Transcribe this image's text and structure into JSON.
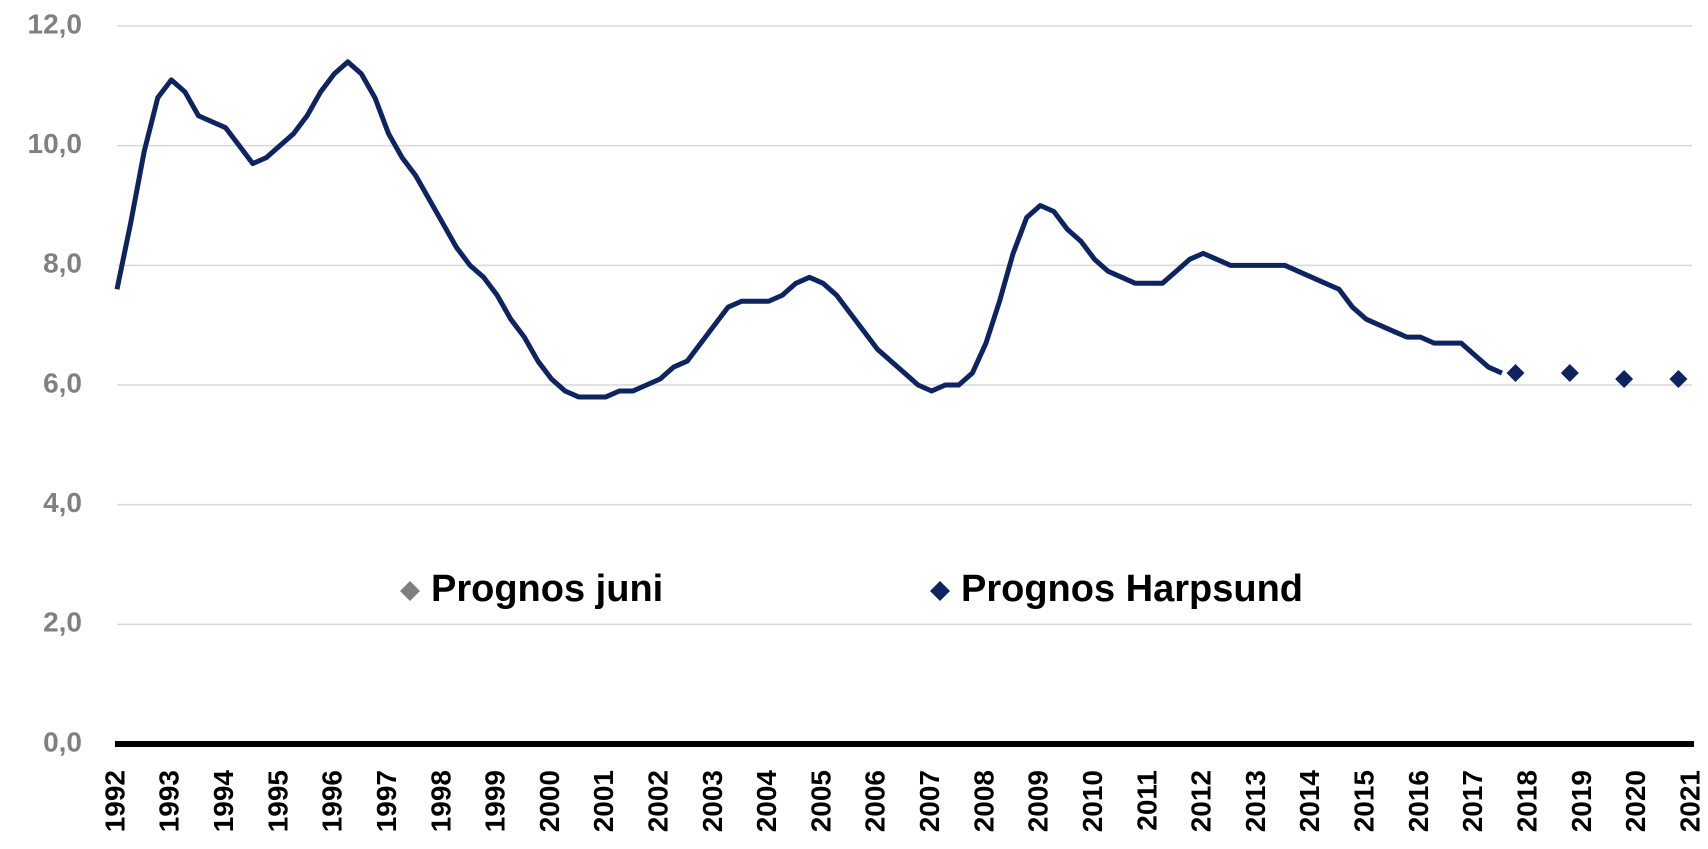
{
  "chart_data": {
    "type": "line",
    "xlim": [
      1992,
      2021
    ],
    "xticks": [
      1992,
      1993,
      1994,
      1995,
      1996,
      1997,
      1998,
      1999,
      2000,
      2001,
      2002,
      2003,
      2004,
      2005,
      2006,
      2007,
      2008,
      2009,
      2010,
      2011,
      2012,
      2013,
      2014,
      2015,
      2016,
      2017,
      2018,
      2019,
      2020,
      2021
    ],
    "ylim": [
      0,
      12
    ],
    "yticks": [
      {
        "value": 0,
        "label": "0,0"
      },
      {
        "value": 2,
        "label": "2,0"
      },
      {
        "value": 4,
        "label": "4,0"
      },
      {
        "value": 6,
        "label": "6,0"
      },
      {
        "value": 8,
        "label": "8,0"
      },
      {
        "value": 10,
        "label": "10,0"
      },
      {
        "value": 12,
        "label": "12,0"
      }
    ],
    "grid": true,
    "series": [
      {
        "color": "#0d2461",
        "mode": "line",
        "x": [
          1992,
          1992.25,
          1992.5,
          1992.75,
          1993,
          1993.25,
          1993.5,
          1993.75,
          1994,
          1994.25,
          1994.5,
          1994.75,
          1995,
          1995.25,
          1995.5,
          1995.75,
          1996,
          1996.25,
          1996.5,
          1996.75,
          1997,
          1997.25,
          1997.5,
          1997.75,
          1998,
          1998.25,
          1998.5,
          1998.75,
          1999,
          1999.25,
          1999.5,
          1999.75,
          2000,
          2000.25,
          2000.5,
          2000.75,
          2001,
          2001.25,
          2001.5,
          2001.75,
          2002,
          2002.25,
          2002.5,
          2002.75,
          2003,
          2003.25,
          2003.5,
          2003.75,
          2004,
          2004.25,
          2004.5,
          2004.75,
          2005,
          2005.25,
          2005.5,
          2005.75,
          2006,
          2006.25,
          2006.5,
          2006.75,
          2007,
          2007.25,
          2007.5,
          2007.75,
          2008,
          2008.25,
          2008.5,
          2008.75,
          2009,
          2009.25,
          2009.5,
          2009.75,
          2010,
          2010.25,
          2010.5,
          2010.75,
          2011,
          2011.25,
          2011.5,
          2011.75,
          2012,
          2012.25,
          2012.5,
          2012.75,
          2013,
          2013.25,
          2013.5,
          2013.75,
          2014,
          2014.25,
          2014.5,
          2014.75,
          2015,
          2015.25,
          2015.5,
          2015.75,
          2016,
          2016.25,
          2016.5,
          2016.75,
          2017,
          2017.25,
          2017.5
        ],
        "values": [
          7.6,
          8.7,
          9.9,
          10.8,
          11.1,
          10.9,
          10.5,
          10.4,
          10.3,
          10.0,
          9.7,
          9.8,
          10.0,
          10.2,
          10.5,
          10.9,
          11.2,
          11.4,
          11.2,
          10.8,
          10.2,
          9.8,
          9.5,
          9.1,
          8.7,
          8.3,
          8.0,
          7.8,
          7.5,
          7.1,
          6.8,
          6.4,
          6.1,
          5.9,
          5.8,
          5.8,
          5.8,
          5.9,
          5.9,
          6.0,
          6.1,
          6.3,
          6.4,
          6.7,
          7.0,
          7.3,
          7.4,
          7.4,
          7.4,
          7.5,
          7.7,
          7.8,
          7.7,
          7.5,
          7.2,
          6.9,
          6.6,
          6.4,
          6.2,
          6.0,
          5.9,
          6.0,
          6.0,
          6.2,
          6.7,
          7.4,
          8.2,
          8.8,
          9.0,
          8.9,
          8.6,
          8.4,
          8.1,
          7.9,
          7.8,
          7.7,
          7.7,
          7.7,
          7.9,
          8.1,
          8.2,
          8.1,
          8.0,
          8.0,
          8.0,
          8.0,
          8.0,
          7.9,
          7.8,
          7.7,
          7.6,
          7.3,
          7.1,
          7.0,
          6.9,
          6.8,
          6.8,
          6.7,
          6.7,
          6.7,
          6.5,
          6.3,
          6.2
        ]
      },
      {
        "name": "Prognos juni",
        "color": "#808080",
        "mode": "markers",
        "x": [],
        "values": []
      },
      {
        "name": "Prognos Harpsund",
        "color": "#0d2461",
        "mode": "markers",
        "x": [
          2017.75,
          2018.75,
          2019.75,
          2020.75
        ],
        "values": [
          6.2,
          6.2,
          6.1,
          6.1
        ]
      }
    ]
  }
}
